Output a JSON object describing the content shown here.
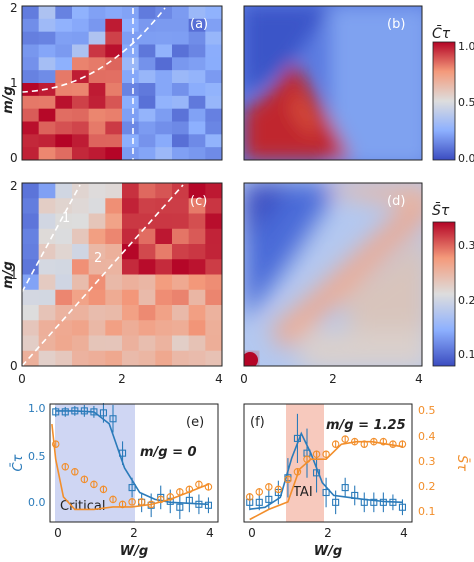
{
  "chart_data": [
    {
      "type": "heatmap",
      "panel": "(a)",
      "ylabel": "m/g",
      "xlim": [
        0,
        4
      ],
      "ylim": [
        0,
        2
      ],
      "yticks": [
        "0",
        "1",
        "2"
      ],
      "colormap": "coolwarm",
      "grid": "12 x 12 cells, disordered average",
      "values_by_region": {
        "upper_left_above_dashed_curve": "low (~0.1-0.3)",
        "left_below_dashed_curve_W_lt_2": "high (~0.7-1.0)",
        "W_gt_2": "low (~0.05-0.3)"
      },
      "annotations": [
        "white dashed curve from (0, 0.95) to (2, 1.95)",
        "white dashed vertical line at W/g = 2"
      ]
    },
    {
      "type": "heatmap",
      "panel": "(b)",
      "xlim": [
        0,
        4
      ],
      "ylim": [
        0,
        2
      ],
      "colormap": "coolwarm",
      "values_by_region": {
        "lower_left_W_lt_2_below_curve": "high (~0.9-1.0)",
        "spur_toward_W_2_m_0": "high",
        "upper_left": "low (~0.05)",
        "right_W_gt_2": "low (~0.2-0.4)"
      }
    },
    {
      "type": "heatmap",
      "panel": "(c)",
      "ylabel": "m/g",
      "xlim": [
        0,
        4
      ],
      "ylim": [
        0,
        2
      ],
      "xticks": [
        "0",
        "2",
        "4"
      ],
      "yticks": [
        "0",
        "1",
        "2"
      ],
      "colormap": "coolwarm",
      "values_by_region": {
        "upper_left_above_line_1": "low (~0.1)",
        "band_between_lines": "medium (~0.15-0.25)",
        "upper_right": "high (~0.3-0.35)",
        "lower_right_small_m": "medium (~0.2)"
      },
      "annotations": [
        "white dashed line 1 from (0, 0.5) to (0.6, 2)",
        "white dashed line 2 from (0, 0) to (2, 2)"
      ],
      "labels": [
        "1",
        "2"
      ]
    },
    {
      "type": "heatmap",
      "panel": "(d)",
      "xlim": [
        0,
        4
      ],
      "ylim": [
        0,
        2
      ],
      "xticks": [
        "0",
        "2",
        "4"
      ],
      "colormap": "coolwarm",
      "values_by_region": {
        "origin_corner": "high (~0.35)",
        "diagonal_ridge_m_eq_W_over_2": "medium-high (~0.25-0.3)",
        "upper_left": "low (~0.1)",
        "lower_right": "medium (~0.2)"
      }
    },
    {
      "type": "colorbar",
      "label": "C̄τ",
      "range": [
        0.0,
        1.0
      ],
      "ticks": [
        "0.00",
        "0.50",
        "1.00"
      ]
    },
    {
      "type": "colorbar",
      "label": "S̄τ",
      "range": [
        0.08,
        0.35
      ],
      "ticks": [
        "0.1",
        "0.2",
        "0.3"
      ]
    },
    {
      "type": "line",
      "panel": "(e)",
      "annotation": "m/g = 0",
      "shaded_region": {
        "label": "Critical",
        "x": [
          0,
          2
        ]
      },
      "xlabel": "W/g",
      "ylabel_left": "C̄τ",
      "xlim": [
        -0.15,
        4.25
      ],
      "ylim_left": [
        -0.15,
        1.05
      ],
      "ylim_right": [
        0.05,
        0.52
      ],
      "xticks": [
        "0",
        "2",
        "4"
      ],
      "yticks_left": [
        "0.0",
        "0.5",
        "1.0"
      ],
      "series": [
        {
          "axis": "left",
          "color": "#2b7bba",
          "marker": "square",
          "x": [
            0,
            0.25,
            0.5,
            0.75,
            1.0,
            1.25,
            1.5,
            1.75,
            2.0,
            2.25,
            2.5,
            2.75,
            3.0,
            3.25,
            3.5,
            3.75,
            4.0
          ],
          "y": [
            0.97,
            0.97,
            0.98,
            0.98,
            0.97,
            0.96,
            0.9,
            0.55,
            0.2,
            0.05,
            0.02,
            0.1,
            0.06,
            0.0,
            0.07,
            0.03,
            0.02
          ],
          "err": [
            0.05,
            0.05,
            0.05,
            0.06,
            0.06,
            0.1,
            0.14,
            0.12,
            0.1,
            0.1,
            0.12,
            0.12,
            0.12,
            0.12,
            0.12,
            0.1,
            0.08
          ]
        },
        {
          "axis": "left",
          "color": "#2b7bba",
          "role": "fit",
          "x": [
            0,
            0.5,
            1.0,
            1.4,
            1.8,
            2.2,
            2.6,
            3.0,
            3.5,
            4.0
          ],
          "y": [
            0.98,
            0.98,
            0.97,
            0.85,
            0.4,
            0.15,
            0.08,
            0.05,
            0.04,
            0.03
          ]
        },
        {
          "axis": "right",
          "color": "#f28e2b",
          "marker": "circle",
          "x": [
            0,
            0.25,
            0.5,
            0.75,
            1.0,
            1.25,
            1.5,
            1.75,
            2.0,
            2.25,
            2.5,
            2.75,
            3.0,
            3.25,
            3.5,
            3.75,
            4.0
          ],
          "y": [
            0.36,
            0.27,
            0.25,
            0.22,
            0.2,
            0.18,
            0.14,
            0.12,
            0.13,
            0.13,
            0.12,
            0.14,
            0.15,
            0.17,
            0.18,
            0.2,
            0.19
          ],
          "err": [
            0.015,
            0.015,
            0.015,
            0.015,
            0.015,
            0.015,
            0.015,
            0.015,
            0.015,
            0.015,
            0.015,
            0.015,
            0.015,
            0.015,
            0.015,
            0.015,
            0.015
          ]
        },
        {
          "axis": "right",
          "color": "#f28e2b",
          "role": "fit",
          "x": [
            -0.1,
            0.0,
            0.2,
            0.5,
            1.0,
            1.5,
            2.0,
            2.5,
            3.0,
            3.5,
            4.0
          ],
          "y": [
            0.44,
            0.3,
            0.15,
            0.1,
            0.1,
            0.11,
            0.11,
            0.12,
            0.14,
            0.17,
            0.2
          ]
        }
      ]
    },
    {
      "type": "line",
      "panel": "(f)",
      "annotation": "m/g = 1.25",
      "shaded_region": {
        "label": "TAI",
        "x": [
          1.0,
          2.0
        ]
      },
      "xlabel": "W/g",
      "ylabel_right": "S̄τ",
      "xlim": [
        -0.15,
        4.25
      ],
      "ylim_left": [
        -0.15,
        1.05
      ],
      "ylim_right": [
        0.05,
        0.52
      ],
      "xticks": [
        "0",
        "2",
        "4"
      ],
      "yticks_right": [
        "0.1",
        "0.2",
        "0.3",
        "0.4",
        "0.5"
      ],
      "series": [
        {
          "axis": "left",
          "color": "#2b7bba",
          "marker": "square",
          "x": [
            0,
            0.25,
            0.5,
            0.75,
            1.0,
            1.25,
            1.5,
            1.75,
            2.0,
            2.25,
            2.5,
            2.75,
            3.0,
            3.25,
            3.5,
            3.75,
            4.0
          ],
          "y": [
            0.05,
            0.05,
            0.08,
            0.15,
            0.3,
            0.7,
            0.55,
            0.35,
            0.15,
            0.05,
            0.2,
            0.12,
            0.05,
            0.05,
            0.05,
            0.05,
            0.0
          ],
          "err": [
            0.08,
            0.08,
            0.1,
            0.12,
            0.2,
            0.25,
            0.25,
            0.2,
            0.15,
            0.12,
            0.1,
            0.1,
            0.1,
            0.1,
            0.1,
            0.08,
            0.08
          ]
        },
        {
          "axis": "left",
          "color": "#2b7bba",
          "role": "fit",
          "x": [
            0,
            0.4,
            0.8,
            1.1,
            1.35,
            1.6,
            1.9,
            2.2,
            2.6,
            3.0,
            3.5,
            4.0
          ],
          "y": [
            -0.02,
            0.0,
            0.1,
            0.5,
            0.75,
            0.55,
            0.25,
            0.12,
            0.1,
            0.08,
            0.06,
            0.05
          ]
        },
        {
          "axis": "right",
          "color": "#f28e2b",
          "marker": "circle",
          "x": [
            0,
            0.25,
            0.5,
            0.75,
            1.0,
            1.25,
            1.5,
            1.75,
            2.0,
            2.25,
            2.5,
            2.75,
            3.0,
            3.25,
            3.5,
            3.75,
            4.0
          ],
          "y": [
            0.15,
            0.17,
            0.19,
            0.18,
            0.22,
            0.25,
            0.3,
            0.32,
            0.32,
            0.36,
            0.38,
            0.37,
            0.36,
            0.37,
            0.37,
            0.36,
            0.36
          ],
          "err": [
            0.015,
            0.015,
            0.015,
            0.015,
            0.015,
            0.015,
            0.015,
            0.015,
            0.015,
            0.015,
            0.015,
            0.015,
            0.015,
            0.015,
            0.015,
            0.015,
            0.015
          ]
        },
        {
          "axis": "right",
          "color": "#f28e2b",
          "role": "fit",
          "x": [
            0,
            0.5,
            1.0,
            1.3,
            1.6,
            2.0,
            2.4,
            2.8,
            3.2,
            3.6,
            4.0
          ],
          "y": [
            0.06,
            0.1,
            0.13,
            0.26,
            0.3,
            0.3,
            0.36,
            0.37,
            0.37,
            0.36,
            0.35
          ]
        }
      ]
    }
  ],
  "labels": {
    "a": "(a)",
    "b": "(b)",
    "c": "(c)",
    "d": "(d)",
    "e": "(e)",
    "f": "(f)",
    "m_over_g": "m/g",
    "w_over_g": "W/g",
    "line1": "1",
    "line2": "2",
    "critical": "Critical",
    "tai": "TAI",
    "m0": "m/g = 0",
    "m125": "m/g = 1.25",
    "c_tau": "C̄τ",
    "s_tau": "S̄τ"
  },
  "ticks": {
    "x": [
      "0",
      "2",
      "4"
    ],
    "y_heat": [
      "0",
      "1",
      "2"
    ],
    "cbar1": [
      "0.00",
      "0.50",
      "1.00"
    ],
    "cbar2": [
      "0.1",
      "0.2",
      "0.3"
    ],
    "left_axis": [
      "0.0",
      "0.5",
      "1.0"
    ],
    "right_axis": [
      "0.1",
      "0.2",
      "0.3",
      "0.4",
      "0.5"
    ]
  },
  "colors": {
    "blue": "#2b7bba",
    "orange": "#f28e2b",
    "critical_shade": "#cfd6f3",
    "tai_shade": "#f7c9bd"
  }
}
